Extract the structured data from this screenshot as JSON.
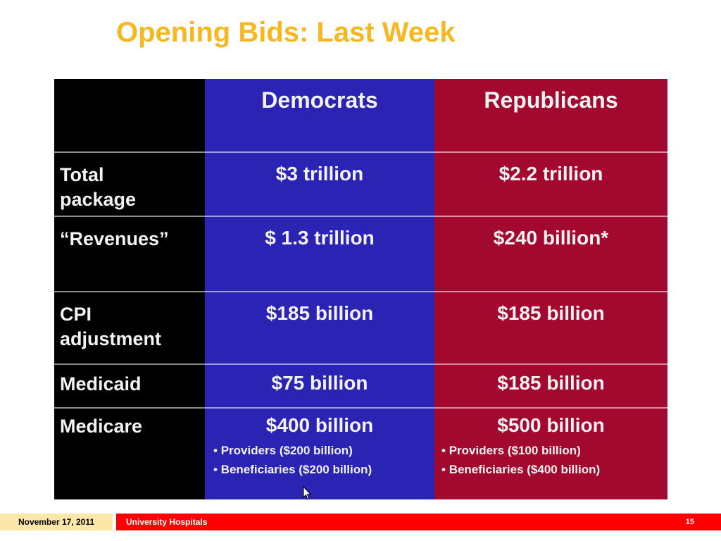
{
  "title": "Opening Bids: Last Week",
  "table": {
    "headers": [
      "",
      "Democrats",
      "Republicans"
    ],
    "rows": [
      {
        "label": "Total\npackage",
        "dem": "$3 trillion",
        "rep": "$2.2 trillion"
      },
      {
        "label": "“Revenues”",
        "dem": "$ 1.3 trillion",
        "rep": "$240 billion*"
      },
      {
        "label": "CPI\nadjustment",
        "dem": "$185 billion",
        "rep": "$185 billion"
      },
      {
        "label": "Medicaid",
        "dem": "$75 billion",
        "rep": "$185 billion"
      },
      {
        "label": "Medicare",
        "dem": "$400 billion",
        "rep": "$500 billion",
        "dem_bullets": [
          "Providers ($200 billion)",
          "Beneficiaries ($200 billion)"
        ],
        "rep_bullets": [
          "Providers ($100 billion)",
          "Beneficiaries ($400 billion)"
        ]
      }
    ]
  },
  "colors": {
    "title": "#f5b820",
    "democrats": "#2a23b4",
    "republicans": "#a3082f",
    "footer_bar": "#ff0000",
    "footer_date_bg": "#fde7a8"
  },
  "footer": {
    "date": "November 17, 2011",
    "org": "University Hospitals",
    "page": "15"
  },
  "icons": {
    "cursor": "mouse-pointer-icon"
  }
}
